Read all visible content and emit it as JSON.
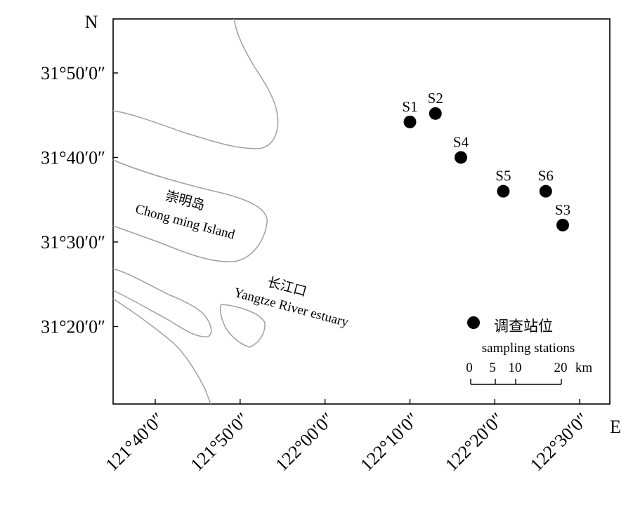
{
  "map": {
    "north_label": "N",
    "east_label": "E",
    "y_ticks": [
      {
        "lat": 31.8333,
        "label": "31°50′0″"
      },
      {
        "lat": 31.6667,
        "label": "31°40′0″"
      },
      {
        "lat": 31.5,
        "label": "31°30′0″"
      },
      {
        "lat": 31.3333,
        "label": "31°20′0″"
      }
    ],
    "x_ticks": [
      {
        "lon": 121.6667,
        "label": "121°40′0″"
      },
      {
        "lon": 121.8333,
        "label": "121°50′0″"
      },
      {
        "lon": 122.0,
        "label": "122°00′0″"
      },
      {
        "lon": 122.1667,
        "label": "122°10′0″"
      },
      {
        "lon": 122.3333,
        "label": "122°20′0″"
      },
      {
        "lon": 122.5,
        "label": "122°30′0″"
      }
    ],
    "stations": [
      {
        "name": "S1",
        "lon": 122.1667,
        "lat": 31.7367
      },
      {
        "name": "S2",
        "lon": 122.2167,
        "lat": 31.7533
      },
      {
        "name": "S4",
        "lon": 122.2667,
        "lat": 31.6667
      },
      {
        "name": "S5",
        "lon": 122.35,
        "lat": 31.6
      },
      {
        "name": "S6",
        "lon": 122.4333,
        "lat": 31.6
      },
      {
        "name": "S3",
        "lon": 122.4667,
        "lat": 31.5333
      }
    ],
    "place_labels": {
      "island_cn": "崇明岛",
      "island_en": "Chong ming  Island",
      "estuary_cn": "长江口",
      "estuary_en": "Yangtze River estuary"
    },
    "legend": {
      "cn": "调查站位",
      "en": "sampling stations"
    },
    "scale_bar": {
      "labels": [
        "0",
        "5",
        "10",
        "20"
      ],
      "unit": "km"
    },
    "colors": {
      "coastline": "#a0a0a0",
      "frame": "#000000",
      "station": "#000000"
    }
  }
}
